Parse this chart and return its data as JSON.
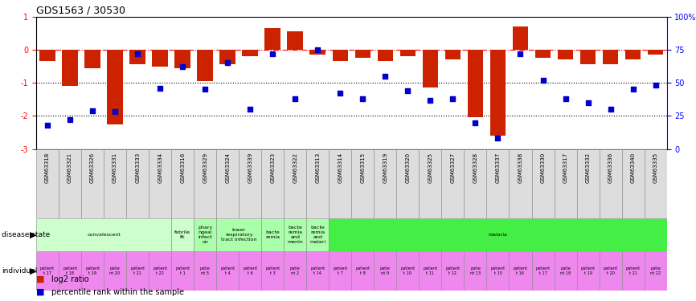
{
  "title": "GDS1563 / 30530",
  "samples": [
    "GSM63318",
    "GSM63321",
    "GSM63326",
    "GSM63331",
    "GSM63333",
    "GSM63334",
    "GSM63316",
    "GSM63329",
    "GSM63324",
    "GSM63339",
    "GSM63323",
    "GSM63322",
    "GSM63313",
    "GSM63314",
    "GSM63315",
    "GSM63319",
    "GSM63320",
    "GSM63325",
    "GSM63327",
    "GSM63328",
    "GSM63337",
    "GSM63338",
    "GSM63330",
    "GSM63317",
    "GSM63332",
    "GSM63336",
    "GSM63340",
    "GSM63335"
  ],
  "log2_ratio": [
    -0.35,
    -1.1,
    -0.55,
    -2.25,
    -0.45,
    -0.5,
    -0.55,
    -0.95,
    -0.45,
    -0.2,
    0.65,
    0.55,
    -0.15,
    -0.35,
    -0.25,
    -0.35,
    -0.2,
    -1.15,
    -0.3,
    -2.05,
    -2.6,
    0.7,
    -0.25,
    -0.3,
    -0.45,
    -0.45,
    -0.3,
    -0.15
  ],
  "percentile_rank": [
    18,
    22,
    29,
    28,
    72,
    46,
    62,
    45,
    65,
    30,
    72,
    38,
    75,
    42,
    38,
    55,
    44,
    37,
    38,
    20,
    8,
    72,
    52,
    38,
    35,
    30,
    45,
    48
  ],
  "disease_state_groups": [
    {
      "label": "convalescent",
      "start": 0,
      "end": 5,
      "color": "#ccffcc"
    },
    {
      "label": "febrile\nfit",
      "start": 6,
      "end": 6,
      "color": "#ccffcc"
    },
    {
      "label": "phary\nngeal\ninfect\non",
      "start": 7,
      "end": 7,
      "color": "#aaffaa"
    },
    {
      "label": "lower\nrespiratory\ntract infection",
      "start": 8,
      "end": 9,
      "color": "#aaffaa"
    },
    {
      "label": "bacte\nremia",
      "start": 10,
      "end": 10,
      "color": "#aaffaa"
    },
    {
      "label": "bacte\nremia\nand\nmenin",
      "start": 11,
      "end": 11,
      "color": "#aaffaa"
    },
    {
      "label": "bacte\nremia\nand\nmalari",
      "start": 12,
      "end": 12,
      "color": "#aaffaa"
    },
    {
      "label": "malaria",
      "start": 13,
      "end": 27,
      "color": "#44ee44"
    }
  ],
  "individual_labels": [
    "patient\nt 17",
    "patient\nt 18",
    "patient\nt 19",
    "patie\nnt 20",
    "patient\nt 21",
    "patient\nt 22",
    "patient\nt 1",
    "patie\nnt 5",
    "patient\nt 4",
    "patient\nt 6",
    "patient\nt 3",
    "patie\nnt 2",
    "patient\nt 14",
    "patient\nt 7",
    "patient\nt 8",
    "patie\nnt 9",
    "patient\nt 10",
    "patient\nt 11",
    "patient\nt 12",
    "patie\nnt 13",
    "patient\nt 15",
    "patient\nt 16",
    "patient\nt 17",
    "patie\nnt 18",
    "patient\nt 19",
    "patient\nt 20",
    "patient\nt 21",
    "patie\nnt 22"
  ],
  "bar_color": "#cc2200",
  "dot_color": "#0000cc",
  "ymin": -3,
  "ymax": 1,
  "yticks_left": [
    -3,
    -2,
    -1,
    0,
    1
  ],
  "ytick_labels_left": [
    "-3",
    "-2",
    "-1",
    "0",
    "1"
  ],
  "yticks_right": [
    0,
    25,
    50,
    75,
    100
  ],
  "ytick_labels_right": [
    "0",
    "25",
    "50",
    "75",
    "100%"
  ],
  "fig_width": 8.66,
  "fig_height": 3.75,
  "dpi": 100
}
